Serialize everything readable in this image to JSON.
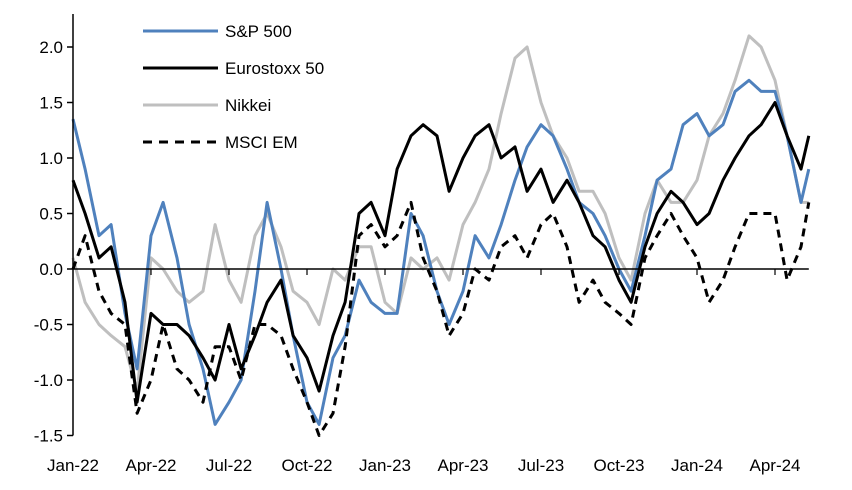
{
  "chart_data": {
    "type": "line",
    "title": "",
    "xlabel": "",
    "ylabel": "",
    "ylim": [
      -1.5,
      2.0
    ],
    "yticks": [
      "2.0",
      "1.5",
      "1.0",
      "0.5",
      "0.0",
      "-0.5",
      "-1.0",
      "-1.5"
    ],
    "ytick_values": [
      2.0,
      1.5,
      1.0,
      0.5,
      0.0,
      -0.5,
      -1.0,
      -1.5
    ],
    "xticks": [
      "Jan-22",
      "Apr-22",
      "Jul-22",
      "Oct-22",
      "Jan-23",
      "Apr-23",
      "Jul-23",
      "Oct-23",
      "Jan-24",
      "Apr-24"
    ],
    "xtick_dates": [
      "2022-01-01",
      "2022-04-01",
      "2022-07-01",
      "2022-10-01",
      "2023-01-01",
      "2023-04-01",
      "2023-07-01",
      "2023-10-01",
      "2024-01-01",
      "2024-04-01"
    ],
    "grid": false,
    "legend_position": "top-left",
    "x": [
      "2022-01-01",
      "2022-01-15",
      "2022-02-01",
      "2022-02-15",
      "2022-03-01",
      "2022-03-15",
      "2022-04-01",
      "2022-04-15",
      "2022-05-01",
      "2022-05-15",
      "2022-06-01",
      "2022-06-15",
      "2022-07-01",
      "2022-07-15",
      "2022-08-01",
      "2022-08-15",
      "2022-09-01",
      "2022-09-15",
      "2022-10-01",
      "2022-10-15",
      "2022-11-01",
      "2022-11-15",
      "2022-12-01",
      "2022-12-15",
      "2023-01-01",
      "2023-01-15",
      "2023-02-01",
      "2023-02-15",
      "2023-03-01",
      "2023-03-15",
      "2023-04-01",
      "2023-04-15",
      "2023-05-01",
      "2023-05-15",
      "2023-06-01",
      "2023-06-15",
      "2023-07-01",
      "2023-07-15",
      "2023-08-01",
      "2023-08-15",
      "2023-09-01",
      "2023-09-15",
      "2023-10-01",
      "2023-10-15",
      "2023-11-01",
      "2023-11-15",
      "2023-12-01",
      "2023-12-15",
      "2024-01-01",
      "2024-01-15",
      "2024-02-01",
      "2024-02-15",
      "2024-03-01",
      "2024-03-15",
      "2024-04-01",
      "2024-04-15",
      "2024-05-01",
      "2024-05-10"
    ],
    "series": [
      {
        "name": "S&P 500",
        "color": "#4f81bd",
        "style": "solid",
        "values": [
          1.35,
          0.9,
          0.3,
          0.4,
          -0.4,
          -0.9,
          0.3,
          0.6,
          0.1,
          -0.5,
          -0.9,
          -1.4,
          -1.2,
          -1.0,
          -0.2,
          0.6,
          0.0,
          -0.6,
          -1.2,
          -1.4,
          -0.8,
          -0.6,
          -0.1,
          -0.3,
          -0.4,
          -0.4,
          0.5,
          0.3,
          -0.2,
          -0.5,
          -0.2,
          0.3,
          0.1,
          0.4,
          0.8,
          1.1,
          1.3,
          1.2,
          0.9,
          0.6,
          0.5,
          0.3,
          0.0,
          -0.2,
          0.3,
          0.8,
          0.9,
          1.3,
          1.4,
          1.2,
          1.3,
          1.6,
          1.7,
          1.6,
          1.6,
          1.2,
          0.6,
          0.9
        ]
      },
      {
        "name": "Eurostoxx 50",
        "color": "#000000",
        "style": "solid",
        "values": [
          0.8,
          0.5,
          0.1,
          0.2,
          -0.3,
          -1.2,
          -0.4,
          -0.5,
          -0.5,
          -0.6,
          -0.8,
          -1.0,
          -0.5,
          -0.9,
          -0.6,
          -0.3,
          -0.1,
          -0.6,
          -0.8,
          -1.1,
          -0.6,
          -0.3,
          0.5,
          0.6,
          0.3,
          0.9,
          1.2,
          1.3,
          1.2,
          0.7,
          1.0,
          1.2,
          1.3,
          1.0,
          1.1,
          0.7,
          0.9,
          0.6,
          0.8,
          0.6,
          0.3,
          0.2,
          -0.1,
          -0.3,
          0.2,
          0.5,
          0.7,
          0.6,
          0.4,
          0.5,
          0.8,
          1.0,
          1.2,
          1.3,
          1.5,
          1.2,
          0.9,
          1.2
        ]
      },
      {
        "name": "Nikkei",
        "color": "#bfbfbf",
        "style": "solid",
        "values": [
          0.1,
          -0.3,
          -0.5,
          -0.6,
          -0.7,
          -1.1,
          0.1,
          0.0,
          -0.2,
          -0.3,
          -0.2,
          0.4,
          -0.1,
          -0.3,
          0.3,
          0.5,
          0.2,
          -0.2,
          -0.3,
          -0.5,
          0.0,
          -0.1,
          0.2,
          0.2,
          -0.3,
          -0.4,
          0.1,
          0.0,
          0.1,
          -0.1,
          0.4,
          0.6,
          0.9,
          1.4,
          1.9,
          2.0,
          1.5,
          1.2,
          1.0,
          0.7,
          0.7,
          0.5,
          0.1,
          -0.1,
          0.5,
          0.8,
          0.6,
          0.6,
          0.8,
          1.2,
          1.4,
          1.7,
          2.1,
          2.0,
          1.7,
          1.2,
          0.6,
          0.6
        ]
      },
      {
        "name": "MSCI EM",
        "color": "#000000",
        "style": "dashed",
        "values": [
          0.0,
          0.3,
          -0.2,
          -0.4,
          -0.5,
          -1.3,
          -1.0,
          -0.5,
          -0.9,
          -1.0,
          -1.2,
          -0.7,
          -0.7,
          -1.0,
          -0.5,
          -0.5,
          -0.6,
          -0.9,
          -1.2,
          -1.5,
          -1.3,
          -0.7,
          0.3,
          0.4,
          0.2,
          0.3,
          0.6,
          0.1,
          -0.2,
          -0.6,
          -0.4,
          0.0,
          -0.1,
          0.2,
          0.3,
          0.1,
          0.4,
          0.5,
          0.2,
          -0.3,
          -0.1,
          -0.3,
          -0.4,
          -0.5,
          0.1,
          0.3,
          0.5,
          0.3,
          0.1,
          -0.3,
          -0.1,
          0.2,
          0.5,
          0.5,
          0.5,
          -0.1,
          0.2,
          0.6
        ]
      }
    ]
  }
}
